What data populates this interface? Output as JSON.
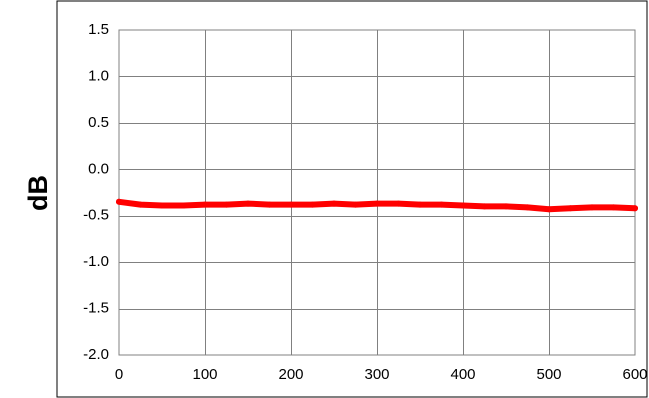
{
  "chart_data": {
    "type": "line",
    "title": "",
    "xlabel": "",
    "ylabel": "dB",
    "xlim": [
      0,
      600
    ],
    "ylim": [
      -2.0,
      1.5
    ],
    "x_ticks": [
      "0",
      "100",
      "200",
      "300",
      "400",
      "500",
      "600"
    ],
    "y_ticks": [
      "1.5",
      "1.0",
      "0.5",
      "0.0",
      "-0.5",
      "-1.0",
      "-1.5",
      "-2.0"
    ],
    "grid": true,
    "legend": "none",
    "series": [
      {
        "color": "#ff0000",
        "x": [
          0,
          25,
          50,
          75,
          100,
          125,
          150,
          175,
          200,
          225,
          250,
          275,
          300,
          325,
          350,
          375,
          400,
          425,
          450,
          475,
          500,
          525,
          550,
          575,
          600
        ],
        "values": [
          -0.35,
          -0.38,
          -0.39,
          -0.39,
          -0.38,
          -0.38,
          -0.37,
          -0.38,
          -0.38,
          -0.38,
          -0.37,
          -0.38,
          -0.37,
          -0.37,
          -0.38,
          -0.38,
          -0.39,
          -0.4,
          -0.4,
          -0.41,
          -0.43,
          -0.42,
          -0.41,
          -0.41,
          -0.42
        ]
      }
    ]
  }
}
